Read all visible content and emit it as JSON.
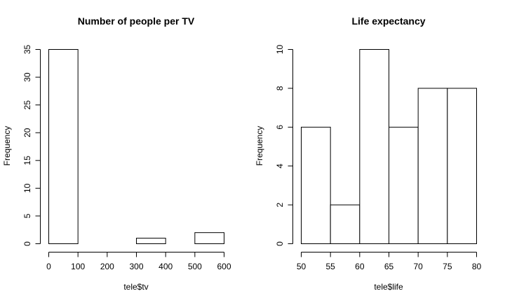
{
  "chart_data": [
    {
      "type": "bar",
      "subtype": "histogram",
      "title": "Number of people per TV",
      "xlabel": "tele$tv",
      "ylabel": "Frequency",
      "bins": [
        [
          0,
          100
        ],
        [
          100,
          200
        ],
        [
          200,
          300
        ],
        [
          300,
          400
        ],
        [
          400,
          500
        ],
        [
          500,
          600
        ]
      ],
      "values": [
        35,
        0,
        0,
        1,
        0,
        2
      ],
      "xlim": [
        0,
        600
      ],
      "ylim": [
        0,
        35
      ],
      "xticks": [
        0,
        100,
        200,
        300,
        400,
        500,
        600
      ],
      "yticks": [
        0,
        5,
        10,
        15,
        20,
        25,
        30,
        35
      ],
      "grid": false,
      "legend": "none"
    },
    {
      "type": "bar",
      "subtype": "histogram",
      "title": "Life expectancy",
      "xlabel": "tele$life",
      "ylabel": "Frequency",
      "bins": [
        [
          50,
          55
        ],
        [
          55,
          60
        ],
        [
          60,
          65
        ],
        [
          65,
          70
        ],
        [
          70,
          75
        ],
        [
          75,
          80
        ]
      ],
      "values": [
        6,
        2,
        10,
        6,
        8,
        8
      ],
      "xlim": [
        50,
        80
      ],
      "ylim": [
        0,
        10
      ],
      "xticks": [
        50,
        55,
        60,
        65,
        70,
        75,
        80
      ],
      "yticks": [
        0,
        2,
        4,
        6,
        8,
        10
      ],
      "grid": false,
      "legend": "none"
    }
  ]
}
